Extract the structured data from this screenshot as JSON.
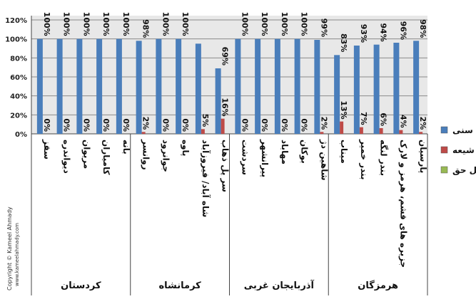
{
  "chart_data": {
    "type": "bar",
    "title": "",
    "ylim": [
      0,
      120
    ],
    "y_ticks": [
      "0%",
      "20%",
      "40%",
      "60%",
      "80%",
      "100%",
      "120%"
    ],
    "grid": true,
    "legend_position": "right",
    "series": [
      {
        "name": "سنی",
        "color": "#4a7ebb"
      },
      {
        "name": "شیعه",
        "color": "#be4b48"
      },
      {
        "name": "اهل حق",
        "color": "#98b954"
      }
    ],
    "categories": [
      "سقز",
      "دیواندره",
      "مریوان",
      "کامیاران",
      "بانه",
      "روانسر",
      "جوانرود",
      "پاوه",
      "شاه آباد/ فیروزآباد",
      "سر پل ذهاب",
      "سردشت",
      "پیرانشهر",
      "مهاباد",
      "بوکان",
      "شاهین دژ",
      "میناب",
      "بندر خمیر",
      "بندر لنگه",
      "جزیره های قشم، هرمز و لارک",
      "پارسیان"
    ],
    "values_sunni": [
      100,
      100,
      100,
      100,
      100,
      98,
      100,
      100,
      95,
      69,
      100,
      100,
      100,
      100,
      99,
      83,
      93,
      94,
      96,
      98
    ],
    "values_shia": [
      0,
      0,
      0,
      0,
      0,
      2,
      0,
      0,
      5,
      16,
      0,
      0,
      0,
      0,
      2,
      13,
      7,
      6,
      4,
      2
    ],
    "labels_sunni": [
      "100%",
      "100%",
      "100%",
      "100%",
      "100%",
      "98%",
      "100%",
      "100%",
      "",
      "69%",
      "100%",
      "100%",
      "100%",
      "100%",
      "99%",
      "83%",
      "93%",
      "94%",
      "96%",
      "98%"
    ],
    "labels_shia": [
      "0%",
      "0%",
      "0%",
      "0%",
      "0%",
      "2%",
      "0%",
      "0%",
      "5%",
      "16%",
      "0%",
      "0%",
      "0%",
      "0%",
      "2%",
      "13%",
      "7%",
      "6%",
      "4%",
      "2%"
    ],
    "groups": [
      {
        "name": "کردستان",
        "count": 5
      },
      {
        "name": "کرمانشاه",
        "count": 5
      },
      {
        "name": "آذربایجان غربی",
        "count": 5
      },
      {
        "name": "هرمزگان",
        "count": 5
      }
    ]
  },
  "copyright": {
    "line1": "Copyright © Kameel Ahmady",
    "line2": "www.kameelahmady.com"
  }
}
